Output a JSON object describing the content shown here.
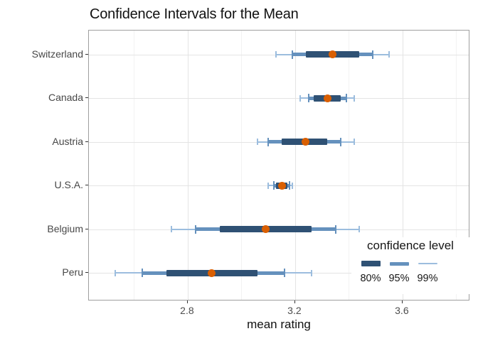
{
  "title": "Confidence Intervals for the Mean",
  "axes": {
    "xlabel": "mean rating",
    "xtick_labels": [
      "2.8",
      "3.2",
      "3.6"
    ]
  },
  "legend": {
    "title": "confidence level",
    "labels": [
      "80%",
      "95%",
      "99%"
    ]
  },
  "colors": {
    "point": "#d95f02",
    "level_80": "#2f5174",
    "level_95": "#6591bd",
    "level_99": "#9cbdde",
    "grid_major": "#e4e4e4",
    "grid_minor": "#f2f2f2",
    "panel_border": "#9f9f9f",
    "axis_text": "#4d4d4d"
  },
  "chart_data": {
    "type": "scatter",
    "subtype": "mean-dot-with-nested-confidence-intervals",
    "title": "Confidence Intervals for the Mean",
    "xlabel": "mean rating",
    "ylabel": "",
    "categories": [
      "Switzerland",
      "Canada",
      "Austria",
      "U.S.A.",
      "Belgium",
      "Peru"
    ],
    "means": [
      3.34,
      3.32,
      3.24,
      3.15,
      3.09,
      2.89
    ],
    "intervals": [
      {
        "level": "80%",
        "ranges": [
          [
            3.24,
            3.44
          ],
          [
            3.27,
            3.37
          ],
          [
            3.15,
            3.32
          ],
          [
            3.13,
            3.17
          ],
          [
            2.92,
            3.26
          ],
          [
            2.72,
            3.06
          ]
        ]
      },
      {
        "level": "95%",
        "ranges": [
          [
            3.19,
            3.49
          ],
          [
            3.25,
            3.39
          ],
          [
            3.1,
            3.37
          ],
          [
            3.12,
            3.18
          ],
          [
            2.83,
            3.35
          ],
          [
            2.63,
            3.16
          ]
        ]
      },
      {
        "level": "99%",
        "ranges": [
          [
            3.13,
            3.55
          ],
          [
            3.22,
            3.42
          ],
          [
            3.06,
            3.42
          ],
          [
            3.1,
            3.19
          ],
          [
            2.74,
            3.44
          ],
          [
            2.53,
            3.26
          ]
        ]
      }
    ],
    "xticks": [
      2.8,
      3.2,
      3.6
    ],
    "x_minor": [
      2.6,
      3.0,
      3.4,
      3.8
    ],
    "xlim": [
      2.432,
      3.852
    ],
    "grid": true,
    "legend_position": "inside-bottom-right",
    "legend_title": "confidence level",
    "legend_entries": [
      "80%",
      "95%",
      "99%"
    ]
  }
}
